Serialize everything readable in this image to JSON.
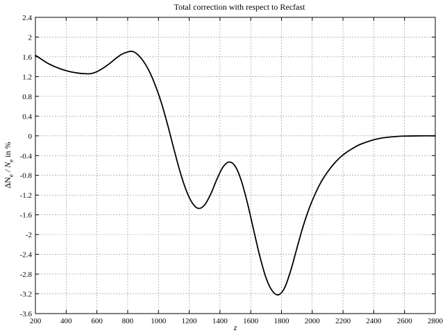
{
  "chart_data": {
    "type": "line",
    "title": "Total correction with respect to Recfast",
    "xlabel": "z",
    "ylabel": {
      "prefix": "ΔN",
      "sub1": "e",
      "middle": " / N",
      "sub2": "e",
      "suffix": " in %"
    },
    "xlim": [
      200,
      2800
    ],
    "ylim": [
      -3.6,
      2.4
    ],
    "grid": true,
    "x_ticks": [
      200,
      400,
      600,
      800,
      1000,
      1200,
      1400,
      1600,
      1800,
      2000,
      2200,
      2400,
      2600,
      2800
    ],
    "y_ticks": [
      2.4,
      2,
      1.6,
      1.2,
      0.8,
      0.4,
      0,
      -0.4,
      -0.8,
      -1.2,
      -1.6,
      -2,
      -2.4,
      -2.8,
      -3.2,
      -3.6
    ],
    "series": [
      {
        "points": [
          [
            200,
            1.63
          ],
          [
            240,
            1.55
          ],
          [
            280,
            1.47
          ],
          [
            320,
            1.41
          ],
          [
            360,
            1.36
          ],
          [
            400,
            1.32
          ],
          [
            440,
            1.29
          ],
          [
            480,
            1.27
          ],
          [
            520,
            1.26
          ],
          [
            560,
            1.26
          ],
          [
            600,
            1.3
          ],
          [
            640,
            1.37
          ],
          [
            680,
            1.46
          ],
          [
            720,
            1.56
          ],
          [
            760,
            1.65
          ],
          [
            800,
            1.7
          ],
          [
            830,
            1.71
          ],
          [
            860,
            1.66
          ],
          [
            900,
            1.52
          ],
          [
            940,
            1.31
          ],
          [
            980,
            1.02
          ],
          [
            1020,
            0.66
          ],
          [
            1060,
            0.22
          ],
          [
            1100,
            -0.26
          ],
          [
            1140,
            -0.72
          ],
          [
            1180,
            -1.1
          ],
          [
            1220,
            -1.36
          ],
          [
            1260,
            -1.47
          ],
          [
            1300,
            -1.4
          ],
          [
            1340,
            -1.18
          ],
          [
            1380,
            -0.88
          ],
          [
            1420,
            -0.63
          ],
          [
            1460,
            -0.53
          ],
          [
            1500,
            -0.62
          ],
          [
            1540,
            -0.92
          ],
          [
            1580,
            -1.38
          ],
          [
            1620,
            -1.92
          ],
          [
            1660,
            -2.45
          ],
          [
            1700,
            -2.88
          ],
          [
            1740,
            -3.14
          ],
          [
            1780,
            -3.22
          ],
          [
            1820,
            -3.08
          ],
          [
            1860,
            -2.73
          ],
          [
            1900,
            -2.28
          ],
          [
            1940,
            -1.84
          ],
          [
            1980,
            -1.47
          ],
          [
            2020,
            -1.17
          ],
          [
            2060,
            -0.92
          ],
          [
            2100,
            -0.73
          ],
          [
            2140,
            -0.57
          ],
          [
            2180,
            -0.44
          ],
          [
            2220,
            -0.34
          ],
          [
            2260,
            -0.26
          ],
          [
            2300,
            -0.19
          ],
          [
            2340,
            -0.14
          ],
          [
            2400,
            -0.08
          ],
          [
            2460,
            -0.04
          ],
          [
            2520,
            -0.02
          ],
          [
            2600,
            -0.005
          ],
          [
            2700,
            0.0
          ],
          [
            2800,
            0.0
          ]
        ]
      }
    ]
  }
}
